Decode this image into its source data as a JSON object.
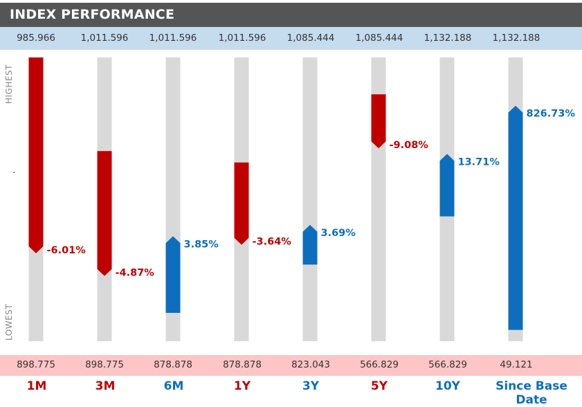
{
  "header": {
    "title": "INDEX PERFORMANCE"
  },
  "axis": {
    "top_label": "HIGHEST",
    "bottom_label": "LOWEST",
    "middle_mark": "."
  },
  "colors": {
    "negative": "#c00000",
    "positive": "#0d6ebd",
    "track": "#d9d9d9",
    "high_band": "#c5dbee",
    "low_band": "#fdc5c5",
    "header_bg": "#555555"
  },
  "chart_data": {
    "type": "bar",
    "description_type": "range-position",
    "categories": [
      "1M",
      "3M",
      "6M",
      "1Y",
      "3Y",
      "5Y",
      "10Y",
      "Since Base Date"
    ],
    "highs": [
      "985.966",
      "1,011.596",
      "1,011.596",
      "1,011.596",
      "1,085.444",
      "1,085.444",
      "1,132.188",
      "1,132.188"
    ],
    "lows": [
      "898.775",
      "898.775",
      "878.878",
      "878.878",
      "823.043",
      "566.829",
      "566.829",
      "49.121"
    ],
    "returns": [
      "-6.01%",
      "-4.87%",
      "3.85%",
      "-3.64%",
      "3.69%",
      "-9.08%",
      "13.71%",
      "826.73%"
    ],
    "direction": [
      "down",
      "down",
      "up",
      "down",
      "up",
      "down",
      "up",
      "up"
    ],
    "start_position": [
      1.0,
      0.67,
      0.1,
      0.63,
      0.27,
      0.87,
      0.44,
      0.04
    ],
    "end_position": [
      0.31,
      0.23,
      0.37,
      0.34,
      0.41,
      0.68,
      0.66,
      0.83
    ]
  }
}
